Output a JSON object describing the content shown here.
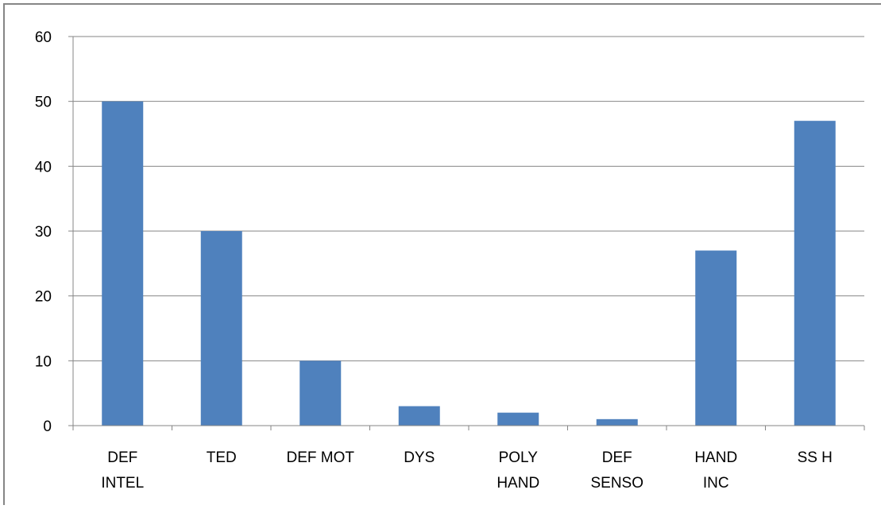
{
  "chart_data": {
    "type": "bar",
    "categories": [
      "DEF\nINTEL",
      "TED",
      "DEF MOT",
      "DYS",
      "POLY\nHAND",
      "DEF\nSENSO",
      "HAND\nINC",
      "SS H"
    ],
    "values": [
      50,
      30,
      10,
      3,
      2,
      1,
      27,
      47
    ],
    "color": "#4f81bd",
    "ylim": [
      0,
      60
    ],
    "yticks": [
      0,
      10,
      20,
      30,
      40,
      50,
      60
    ],
    "grid": true
  }
}
